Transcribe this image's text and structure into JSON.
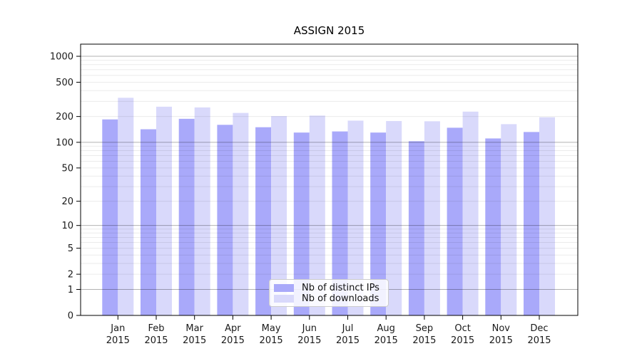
{
  "chart_data": {
    "type": "bar",
    "title": "ASSIGN 2015",
    "categories": [
      "Jan 2015",
      "Feb 2015",
      "Mar 2015",
      "Apr 2015",
      "May 2015",
      "Jun 2015",
      "Jul 2015",
      "Aug 2015",
      "Sep 2015",
      "Oct 2015",
      "Nov 2015",
      "Dec 2015"
    ],
    "series": [
      {
        "name": "Nb of distinct IPs",
        "color": "#a9a9fa",
        "values": [
          185,
          142,
          188,
          160,
          150,
          130,
          134,
          130,
          103,
          148,
          111,
          132
        ]
      },
      {
        "name": "Nb of downloads",
        "color": "#d9d9fb",
        "values": [
          330,
          260,
          255,
          220,
          202,
          205,
          179,
          177,
          176,
          228,
          163,
          196
        ]
      }
    ],
    "y_ticks": [
      0,
      1,
      2,
      5,
      10,
      20,
      50,
      100,
      200,
      500,
      1000
    ],
    "y_scale": "symlog (position = log10(1+value))",
    "ylim": [
      0,
      1400
    ],
    "grid": {
      "minor_color": "#ebebeb",
      "major_color": "#b3b3b3",
      "major_at": [
        1,
        10,
        100,
        1000
      ],
      "minor_mantissas": [
        2,
        3,
        4,
        5,
        6,
        7,
        8,
        9
      ]
    },
    "axis_color": "#000000",
    "text_color": "#1a1a1a",
    "legend": {
      "position": "lower center, inside plot"
    }
  }
}
